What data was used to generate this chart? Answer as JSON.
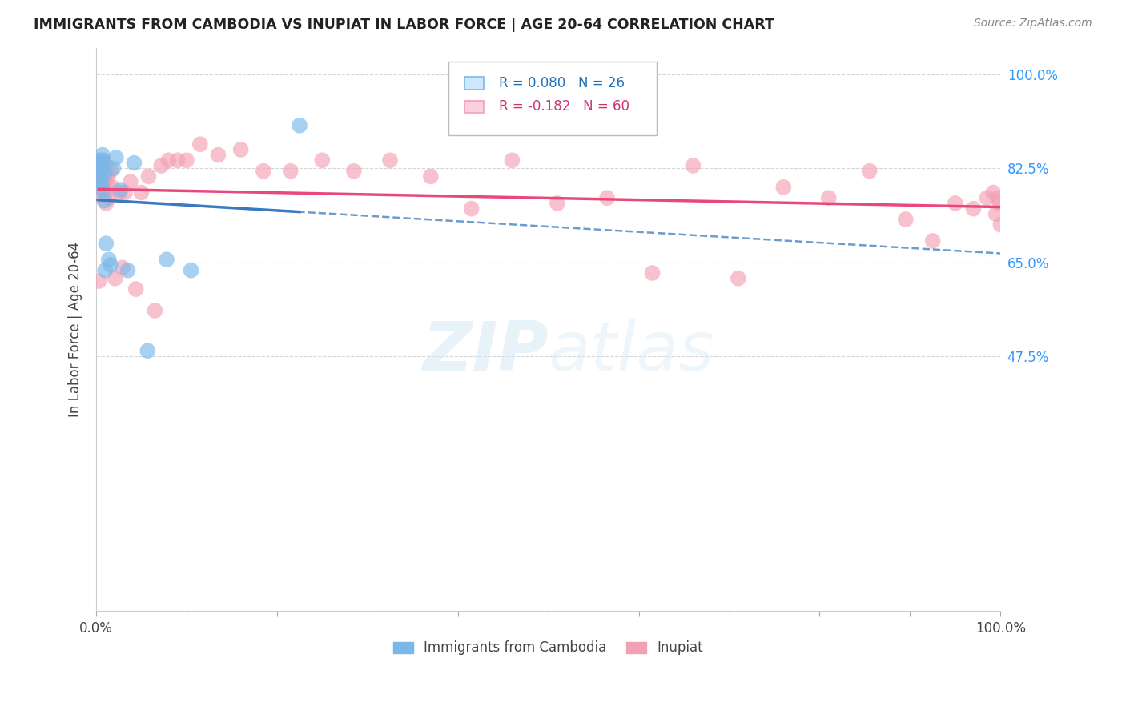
{
  "title": "IMMIGRANTS FROM CAMBODIA VS INUPIAT IN LABOR FORCE | AGE 20-64 CORRELATION CHART",
  "source": "Source: ZipAtlas.com",
  "ylabel": "In Labor Force | Age 20-64",
  "xlim": [
    0.0,
    1.0
  ],
  "ylim": [
    0.0,
    1.05
  ],
  "ytick_positions": [
    0.475,
    0.65,
    0.825,
    1.0
  ],
  "ytick_labels": [
    "47.5%",
    "65.0%",
    "82.5%",
    "100.0%"
  ],
  "legend1_r": "R = 0.080",
  "legend1_n": "N = 26",
  "legend2_r": "R = -0.182",
  "legend2_n": "N = 60",
  "legend_label1": "Immigrants from Cambodia",
  "legend_label2": "Inupiat",
  "blue_color": "#7ab8e8",
  "pink_color": "#f4a0b5",
  "blue_line_color": "#3a7abf",
  "pink_line_color": "#e8497a",
  "watermark_color": "#d0e8f5",
  "cambodia_x": [
    0.003,
    0.003,
    0.004,
    0.005,
    0.005,
    0.006,
    0.006,
    0.007,
    0.007,
    0.007,
    0.008,
    0.009,
    0.009,
    0.01,
    0.011,
    0.014,
    0.016,
    0.019,
    0.022,
    0.027,
    0.035,
    0.042,
    0.057,
    0.078,
    0.105,
    0.225
  ],
  "cambodia_y": [
    0.835,
    0.84,
    0.815,
    0.825,
    0.805,
    0.795,
    0.835,
    0.85,
    0.825,
    0.785,
    0.84,
    0.815,
    0.765,
    0.635,
    0.685,
    0.655,
    0.645,
    0.825,
    0.845,
    0.785,
    0.635,
    0.835,
    0.485,
    0.655,
    0.635,
    0.905
  ],
  "inupiat_x": [
    0.003,
    0.004,
    0.005,
    0.006,
    0.007,
    0.007,
    0.008,
    0.008,
    0.009,
    0.01,
    0.01,
    0.011,
    0.011,
    0.012,
    0.013,
    0.014,
    0.016,
    0.018,
    0.021,
    0.026,
    0.029,
    0.032,
    0.038,
    0.044,
    0.05,
    0.058,
    0.065,
    0.072,
    0.08,
    0.09,
    0.1,
    0.115,
    0.135,
    0.16,
    0.185,
    0.215,
    0.25,
    0.285,
    0.325,
    0.37,
    0.415,
    0.46,
    0.51,
    0.565,
    0.615,
    0.66,
    0.71,
    0.76,
    0.81,
    0.855,
    0.895,
    0.925,
    0.95,
    0.97,
    0.985,
    0.992,
    0.995,
    0.997,
    0.999,
    1.0
  ],
  "inupiat_y": [
    0.615,
    0.775,
    0.81,
    0.795,
    0.835,
    0.82,
    0.8,
    0.84,
    0.8,
    0.78,
    0.81,
    0.83,
    0.76,
    0.79,
    0.81,
    0.77,
    0.82,
    0.79,
    0.62,
    0.78,
    0.64,
    0.78,
    0.8,
    0.6,
    0.78,
    0.81,
    0.56,
    0.83,
    0.84,
    0.84,
    0.84,
    0.87,
    0.85,
    0.86,
    0.82,
    0.82,
    0.84,
    0.82,
    0.84,
    0.81,
    0.75,
    0.84,
    0.76,
    0.77,
    0.63,
    0.83,
    0.62,
    0.79,
    0.77,
    0.82,
    0.73,
    0.69,
    0.76,
    0.75,
    0.77,
    0.78,
    0.74,
    0.77,
    0.76,
    0.72
  ],
  "background_color": "#ffffff",
  "grid_color": "#cccccc"
}
